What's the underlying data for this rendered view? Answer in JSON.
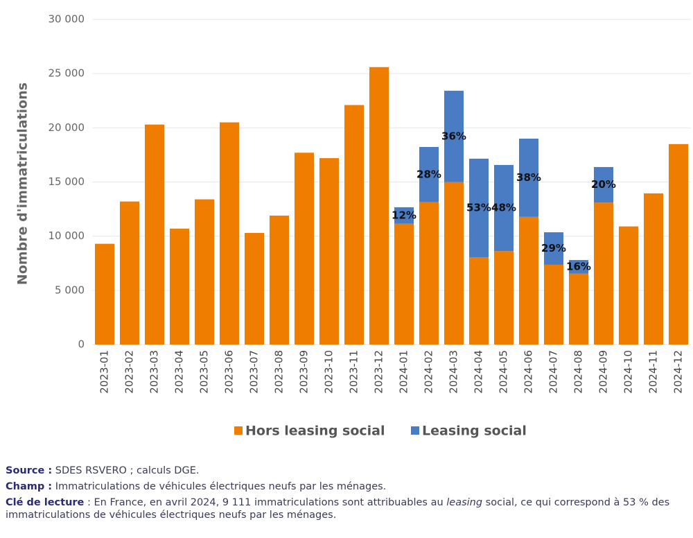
{
  "chart_data": {
    "type": "stacked-bar",
    "y_label": "Nombre d'immatriculations",
    "categories": [
      "2023-01",
      "2023-02",
      "2023-03",
      "2023-04",
      "2023-05",
      "2023-06",
      "2023-07",
      "2023-08",
      "2023-09",
      "2023-10",
      "2023-11",
      "2023-12",
      "2024-01",
      "2024-02",
      "2024-03",
      "2024-04",
      "2024-05",
      "2024-06",
      "2024-07",
      "2024-08",
      "2024-09",
      "2024-10",
      "2024-11",
      "2024-12"
    ],
    "series": [
      {
        "name": "Hors leasing social",
        "color": "#ee7d00",
        "values": [
          9300,
          13200,
          20300,
          10700,
          13400,
          20500,
          10300,
          11900,
          17700,
          17200,
          22100,
          25600,
          11150,
          13130,
          14990,
          8040,
          8620,
          11780,
          7360,
          6550,
          13100,
          10900,
          13950,
          18500
        ]
      },
      {
        "name": "Leasing social",
        "color": "#4a7cc4",
        "values": [
          null,
          null,
          null,
          null,
          null,
          null,
          null,
          null,
          null,
          null,
          null,
          null,
          1520,
          5100,
          8430,
          9111,
          7950,
          7220,
          3000,
          1250,
          3280,
          null,
          null,
          null
        ],
        "share_labels": [
          null,
          null,
          null,
          null,
          null,
          null,
          null,
          null,
          null,
          null,
          null,
          null,
          "12%",
          "28%",
          "36%",
          "53%",
          "48%",
          "38%",
          "29%",
          "16%",
          "20%",
          null,
          null,
          null
        ]
      }
    ],
    "ylim": [
      0,
      30000
    ],
    "yticks": [
      0,
      {
        "value": 5000,
        "label": "5 000"
      },
      {
        "value": 10000,
        "label": "10 000"
      },
      {
        "value": 15000,
        "label": "15 000"
      },
      {
        "value": 20000,
        "label": "20 000"
      },
      {
        "value": 25000,
        "label": "25 000"
      },
      {
        "value": 30000,
        "label": "30 000"
      }
    ],
    "grid": true,
    "legend": "bottom"
  },
  "notes": [
    {
      "label": "Source :",
      "parts": [
        " SDES RSVERO ; calculs DGE."
      ]
    },
    {
      "label": "Champ :",
      "parts": [
        " Immatriculations de véhicules électriques neufs par les ménages."
      ]
    },
    {
      "label": "Clé de lecture",
      "parts": [
        " : En France, en avril 2024, 9 111 immatriculations sont attribuables au ",
        "leasing",
        " social, ce qui correspond à 53 % des immatriculations de véhicules électriques neufs par les ménages."
      ]
    }
  ]
}
